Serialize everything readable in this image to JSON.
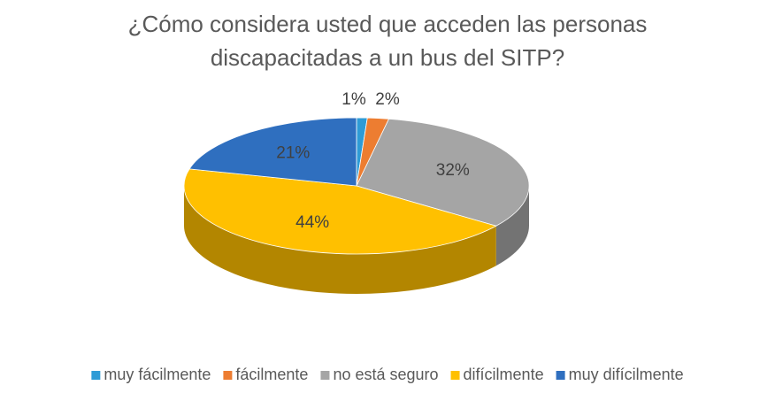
{
  "chart_data": {
    "type": "pie3d",
    "title": "¿Cómo considera usted que acceden las personas discapacitadas a un bus del SITP?",
    "categories": [
      "muy fácilmente",
      "fácilmente",
      "no está seguro",
      "difícilmente",
      "muy difícilmente"
    ],
    "values": [
      1,
      2,
      32,
      44,
      21
    ],
    "value_labels": [
      "1%",
      "2%",
      "32%",
      "44%",
      "21%"
    ],
    "colors": [
      "#2e9bd6",
      "#ed7d31",
      "#a5a5a5",
      "#ffc000",
      "#2f6fbf"
    ],
    "legend": "bottom"
  }
}
